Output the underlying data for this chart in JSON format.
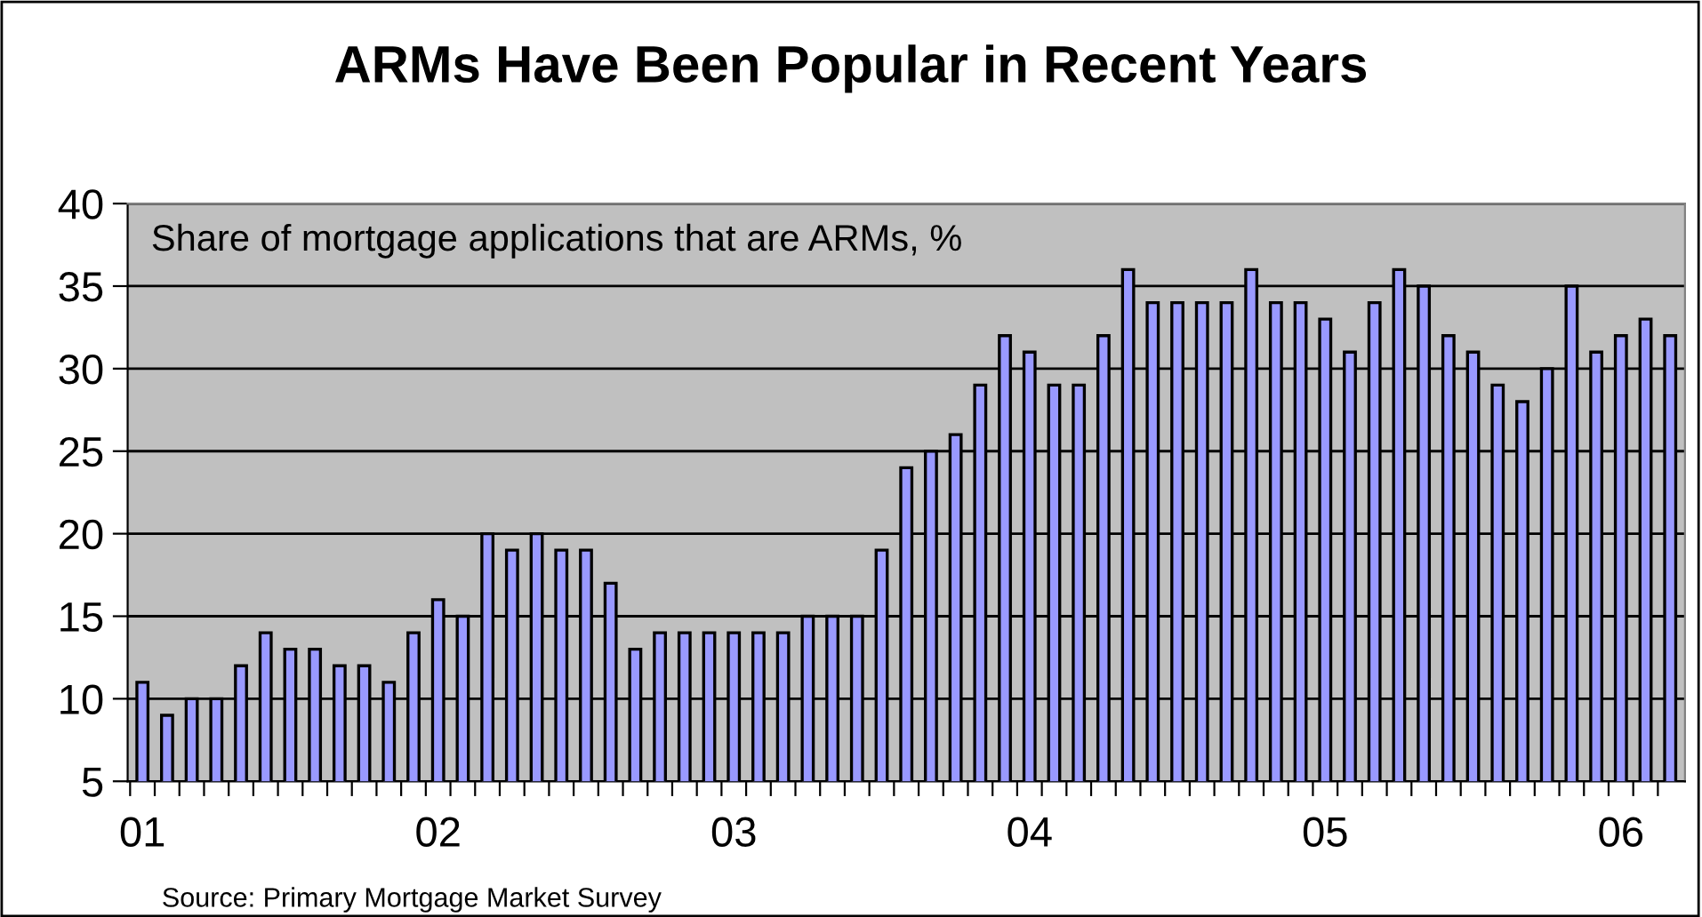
{
  "chart_data": {
    "type": "bar",
    "title": "ARMs Have Been Popular in Recent Years",
    "subtitle": "Share of mortgage applications that are ARMs, %",
    "annotations": [
      "Source: Primary Mortgage Market Survey"
    ],
    "categories": [
      "01",
      null,
      null,
      null,
      null,
      null,
      null,
      null,
      null,
      null,
      null,
      null,
      "02",
      null,
      null,
      null,
      null,
      null,
      null,
      null,
      null,
      null,
      null,
      null,
      "03",
      null,
      null,
      null,
      null,
      null,
      null,
      null,
      null,
      null,
      null,
      null,
      "04",
      null,
      null,
      null,
      null,
      null,
      null,
      null,
      null,
      null,
      null,
      null,
      "05",
      null,
      null,
      null,
      null,
      null,
      null,
      null,
      null,
      null,
      null,
      null,
      "06",
      null,
      null
    ],
    "values": [
      11,
      9,
      10,
      10,
      12,
      14,
      13,
      13,
      12,
      12,
      11,
      14,
      16,
      15,
      20,
      19,
      20,
      19,
      19,
      17,
      13,
      14,
      14,
      14,
      14,
      14,
      14,
      15,
      15,
      15,
      19,
      24,
      25,
      26,
      29,
      32,
      31,
      29,
      29,
      32,
      36,
      34,
      34,
      34,
      34,
      36,
      34,
      34,
      33,
      31,
      34,
      36,
      35,
      32,
      31,
      29,
      28,
      30,
      35,
      31,
      32,
      33,
      32
    ],
    "color": "#9999ff",
    "ylim": [
      5,
      40
    ],
    "yticks": [
      5,
      10,
      15,
      20,
      25,
      30,
      35,
      40
    ],
    "grid": "y"
  }
}
